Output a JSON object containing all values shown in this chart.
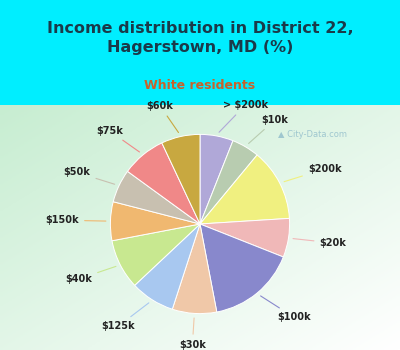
{
  "title": "Income distribution in District 22,\nHagerstown, MD (%)",
  "subtitle": "White residents",
  "title_color": "#1a3a4a",
  "subtitle_color": "#c8622a",
  "bg_top": "#00eeff",
  "watermark": "City-Data.com",
  "slices": [
    {
      "label": "> $200k",
      "value": 6,
      "color": "#b0a8d8"
    },
    {
      "label": "$10k",
      "value": 5,
      "color": "#b8ccb0"
    },
    {
      "label": "$200k",
      "value": 13,
      "color": "#f0f080"
    },
    {
      "label": "$20k",
      "value": 7,
      "color": "#f0b8b8"
    },
    {
      "label": "$100k",
      "value": 16,
      "color": "#8888cc"
    },
    {
      "label": "$30k",
      "value": 8,
      "color": "#f0c8a8"
    },
    {
      "label": "$125k",
      "value": 8,
      "color": "#a8c8f0"
    },
    {
      "label": "$40k",
      "value": 9,
      "color": "#c8e890"
    },
    {
      "label": "$150k",
      "value": 7,
      "color": "#f0b870"
    },
    {
      "label": "$50k",
      "value": 6,
      "color": "#c8c0b0"
    },
    {
      "label": "$75k",
      "value": 8,
      "color": "#f08888"
    },
    {
      "label": "$60k",
      "value": 7,
      "color": "#c8a840"
    }
  ],
  "figsize": [
    4.0,
    3.5
  ],
  "dpi": 100
}
